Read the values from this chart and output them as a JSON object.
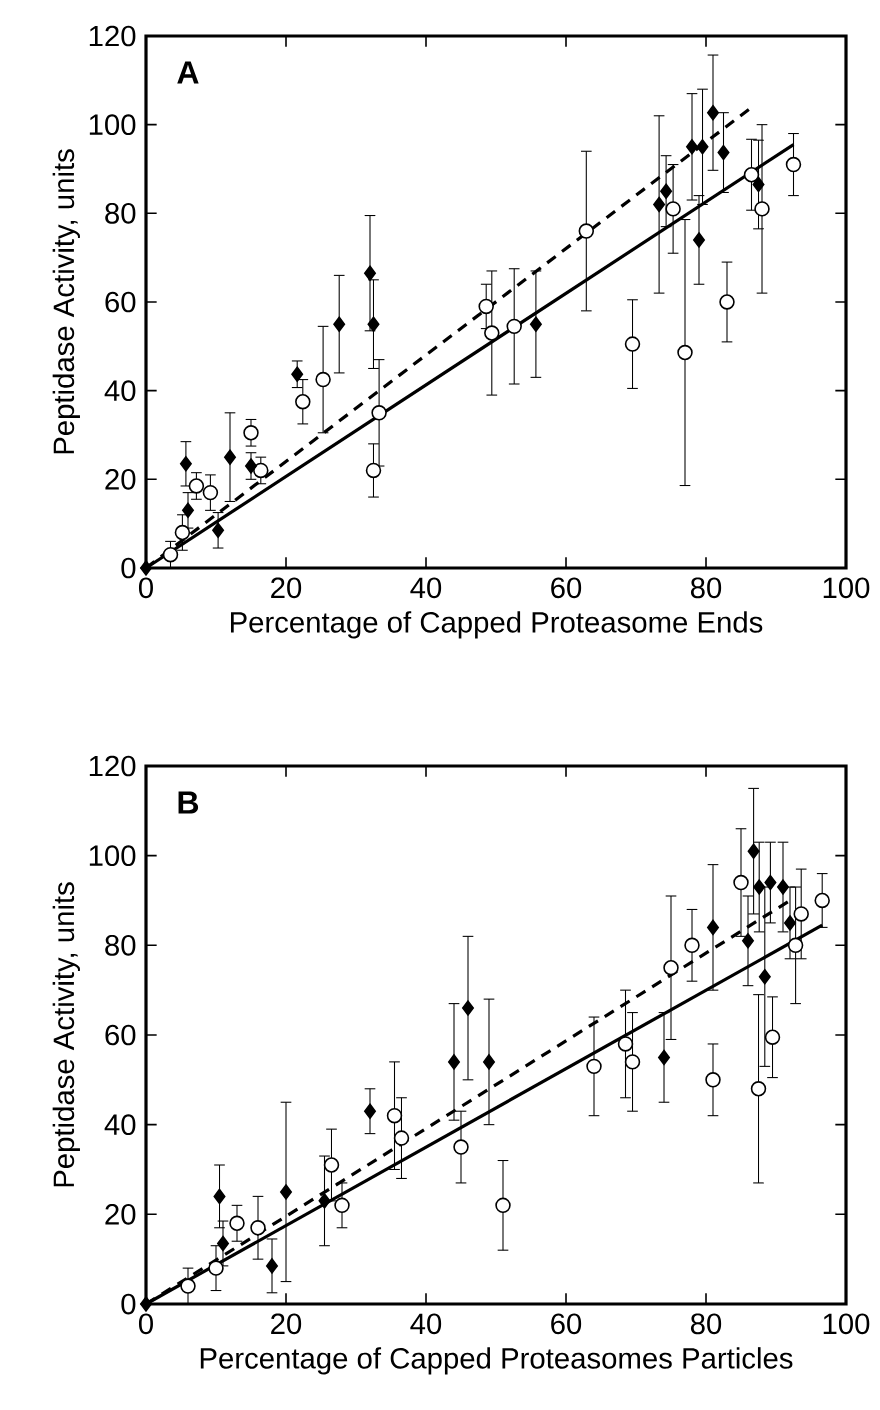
{
  "chart_data": [
    {
      "type": "scatter",
      "xlabel": "Percentage of Capped Proteasome Ends",
      "ylabel": "Peptidase Activity, units",
      "annotations": [
        "A"
      ],
      "xlim": [
        0,
        100
      ],
      "ylim": [
        0,
        120
      ],
      "xticks": [
        0,
        20,
        40,
        60,
        80,
        100
      ],
      "yticks": [
        0,
        20,
        40,
        60,
        80,
        100,
        120
      ],
      "grid": false,
      "series": [
        {
          "type": "scatter",
          "marker": "diamond",
          "color": "#000000",
          "x": [
            0,
            5.7,
            6,
            10.3,
            12,
            15,
            21.6,
            27.6,
            32,
            32.5,
            55.7,
            73.3,
            74.3,
            78,
            79.5,
            79,
            81,
            82.5,
            87.5
          ],
          "values": [
            0,
            23.5,
            13,
            8.5,
            25,
            23,
            43.7,
            55,
            66.5,
            55,
            55,
            82,
            85,
            95,
            95,
            74,
            102.7,
            93.7,
            86.5
          ],
          "errors": [
            null,
            5,
            4,
            4,
            10,
            3,
            3,
            11,
            13,
            10,
            12,
            20,
            8,
            12,
            13,
            10,
            13,
            9,
            10
          ]
        },
        {
          "type": "scatter",
          "marker": "circle",
          "color": "#000000",
          "x": [
            3.5,
            5.2,
            7.2,
            9.2,
            15,
            16.4,
            22.4,
            25.3,
            32.5,
            33.3,
            48.6,
            49.4,
            52.6,
            62.9,
            69.5,
            75.3,
            77,
            83,
            86.5,
            88,
            92.5
          ],
          "values": [
            3,
            8,
            18.5,
            17,
            30.5,
            22,
            37.5,
            42.5,
            22,
            35,
            59,
            53,
            54.5,
            76,
            50.5,
            81,
            48.6,
            60,
            88.7,
            81,
            91
          ],
          "errors": [
            3,
            4,
            3,
            4,
            3,
            3,
            5,
            12,
            6,
            12,
            5,
            14,
            13,
            18,
            10,
            10,
            30,
            9,
            8,
            19,
            7
          ]
        },
        {
          "type": "line",
          "line_style": "solid",
          "marker": "none",
          "color": "#000000",
          "x": [
            0,
            92.5
          ],
          "values": [
            0,
            95.5
          ]
        },
        {
          "type": "line",
          "line_style": "dashed",
          "marker": "none",
          "color": "#000000",
          "x": [
            0,
            86.6
          ],
          "values": [
            0,
            104
          ]
        }
      ]
    },
    {
      "type": "scatter",
      "xlabel": "Percentage of Capped Proteasomes Particles",
      "ylabel": "Peptidase Activity, units",
      "annotations": [
        "B"
      ],
      "xlim": [
        0,
        100
      ],
      "ylim": [
        0,
        120
      ],
      "xticks": [
        0,
        20,
        40,
        60,
        80,
        100
      ],
      "yticks": [
        0,
        20,
        40,
        60,
        80,
        100,
        120
      ],
      "grid": false,
      "series": [
        {
          "type": "scatter",
          "marker": "diamond",
          "color": "#000000",
          "x": [
            0,
            10.5,
            11,
            18,
            20,
            25.5,
            32,
            44,
            46,
            49,
            74,
            81,
            86,
            86.8,
            87.6,
            88.4,
            89.2,
            91,
            92
          ],
          "values": [
            0,
            24,
            13.5,
            8.5,
            25,
            23,
            43,
            54,
            66,
            54,
            55,
            84,
            81,
            101,
            93,
            73,
            94,
            93,
            85
          ],
          "errors": [
            null,
            7,
            5,
            6,
            20,
            10,
            5,
            13,
            16,
            14,
            10,
            14,
            10,
            14,
            10,
            20,
            9,
            10,
            8
          ]
        },
        {
          "type": "scatter",
          "marker": "circle",
          "color": "#000000",
          "x": [
            6,
            10,
            13,
            16,
            26.5,
            28,
            35.5,
            36.5,
            45,
            51,
            64,
            68.5,
            69.5,
            75,
            78,
            81,
            85,
            87.5,
            89.5,
            93.6,
            92.8,
            96.6
          ],
          "values": [
            4,
            8,
            18,
            17,
            31,
            22,
            42,
            37,
            35,
            22,
            53,
            58,
            54,
            75,
            80,
            50,
            94,
            48,
            59.5,
            87,
            80,
            90
          ],
          "errors": [
            4,
            5,
            4,
            7,
            8,
            5,
            12,
            9,
            8,
            10,
            11,
            12,
            11,
            16,
            8,
            8,
            12,
            21,
            9,
            10,
            13,
            6
          ]
        },
        {
          "type": "line",
          "line_style": "solid",
          "marker": "none",
          "color": "#000000",
          "x": [
            0,
            96.6
          ],
          "values": [
            0,
            84.5
          ]
        },
        {
          "type": "line",
          "line_style": "dashed",
          "marker": "none",
          "color": "#000000",
          "x": [
            0,
            92
          ],
          "values": [
            0,
            90
          ]
        }
      ]
    }
  ]
}
